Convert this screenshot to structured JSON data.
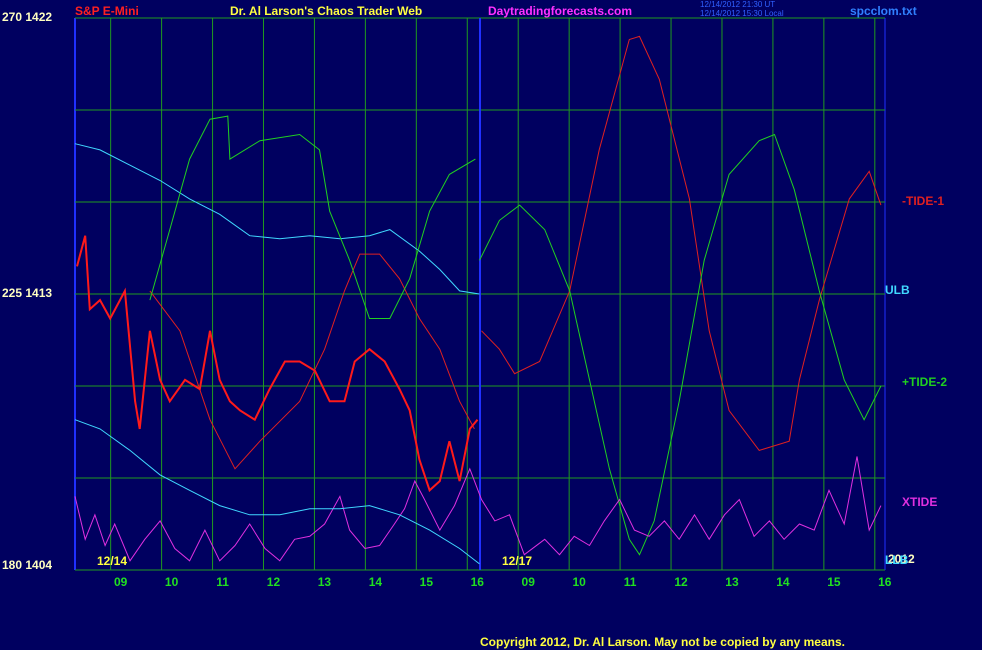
{
  "chart_data": {
    "type": "line",
    "title": "Dr. Al Larson's Chaos Trader Web",
    "instrument": "S&P E-Mini",
    "website": "Daytradingforecasts.com",
    "timestamps": [
      "12/14/2012 21:30 UT",
      "12/14/2012 15:30 Local"
    ],
    "file": "spcclom.txt",
    "year": "2012",
    "copyright": "Copyright 2012, Dr. Al Larson. May not be copied by any means.",
    "day_labels": [
      "12/14",
      "12/17"
    ],
    "xlim": [
      0,
      15.9
    ],
    "ylim": [
      1404,
      1422
    ],
    "yticks": [
      {
        "value": 1404,
        "label": "180  1404"
      },
      {
        "value": 1413,
        "label": "225  1413"
      },
      {
        "value": 1422,
        "label": "270  1422"
      }
    ],
    "ygrid": [
      1404,
      1407,
      1410,
      1413,
      1416,
      1419,
      1422
    ],
    "xticks": [
      {
        "value": 0.7,
        "label": "09"
      },
      {
        "value": 1.7,
        "label": "10"
      },
      {
        "value": 2.7,
        "label": "11"
      },
      {
        "value": 3.7,
        "label": "12"
      },
      {
        "value": 4.7,
        "label": "13"
      },
      {
        "value": 5.7,
        "label": "14"
      },
      {
        "value": 6.7,
        "label": "15"
      },
      {
        "value": 7.7,
        "label": "16"
      },
      {
        "value": 8.7,
        "label": "09"
      },
      {
        "value": 9.7,
        "label": "10"
      },
      {
        "value": 10.7,
        "label": "11"
      },
      {
        "value": 11.7,
        "label": "12"
      },
      {
        "value": 12.7,
        "label": "13"
      },
      {
        "value": 13.7,
        "label": "14"
      },
      {
        "value": 14.7,
        "label": "15"
      },
      {
        "value": 15.7,
        "label": "16"
      }
    ],
    "session_break": 7.95,
    "grid": true,
    "grid_color": "#1f9a1f",
    "price": {
      "color": "#ff1a1a",
      "x": [
        0.04,
        0.2,
        0.29,
        0.49,
        0.69,
        0.98,
        1.18,
        1.27,
        1.47,
        1.67,
        1.86,
        2.16,
        2.45,
        2.65,
        2.84,
        3.04,
        3.24,
        3.53,
        3.82,
        4.12,
        4.41,
        4.71,
        5.0,
        5.29,
        5.49,
        5.78,
        6.08,
        6.37,
        6.57,
        6.76,
        6.96,
        7.16,
        7.35,
        7.55,
        7.75,
        7.9
      ],
      "values": [
        1413.9,
        1414.9,
        1412.5,
        1412.8,
        1412.2,
        1413.1,
        1409.5,
        1408.6,
        1411.8,
        1410.2,
        1409.5,
        1410.2,
        1409.9,
        1411.8,
        1410.2,
        1409.5,
        1409.2,
        1408.9,
        1409.9,
        1410.8,
        1410.8,
        1410.5,
        1409.5,
        1409.5,
        1410.8,
        1411.2,
        1410.8,
        1409.9,
        1409.2,
        1407.6,
        1406.6,
        1406.9,
        1408.2,
        1406.9,
        1408.6,
        1408.9
      ]
    },
    "series": [
      {
        "name": "-TIDE-1",
        "color": "#e02020",
        "x": [
          1.47,
          2.06,
          2.65,
          3.14,
          3.63,
          4.41,
          4.9,
          5.29,
          5.59,
          5.98,
          6.37,
          6.76,
          7.16,
          7.55,
          7.84,
          7.9,
          7.98,
          8.33,
          8.63,
          9.12,
          9.71,
          10.29,
          10.88,
          11.08,
          11.47,
          12.06,
          12.45,
          12.84,
          13.43,
          14.02,
          14.22,
          14.61,
          15.2,
          15.59,
          15.82
        ],
        "values": [
          1413.1,
          1411.8,
          1408.9,
          1407.3,
          1408.2,
          1409.5,
          1411.2,
          1413.1,
          1414.3,
          1414.3,
          1413.5,
          1412.2,
          1411.2,
          1409.5,
          1408.6,
          null,
          1411.8,
          1411.2,
          1410.4,
          1410.8,
          1413.1,
          1417.7,
          1421.3,
          1421.4,
          1420.0,
          1416.1,
          1411.8,
          1409.2,
          1407.9,
          1408.2,
          1410.2,
          1412.8,
          1416.1,
          1417.0,
          1415.9
        ]
      },
      {
        "name": "ULB",
        "color": "#40d8ff",
        "x": [
          0,
          0.49,
          1.08,
          1.67,
          2.25,
          2.84,
          3.43,
          4.02,
          4.61,
          5.2,
          5.78,
          6.18,
          6.76,
          7.16,
          7.55,
          7.94
        ],
        "values": [
          1417.9,
          1417.7,
          1417.2,
          1416.7,
          1416.1,
          1415.6,
          1414.9,
          1414.8,
          1414.9,
          1414.8,
          1414.9,
          1415.1,
          1414.4,
          1413.8,
          1413.1,
          1413.0
        ]
      },
      {
        "name": "+TIDE-2",
        "color": "#20d020",
        "x": [
          1.47,
          1.86,
          2.25,
          2.65,
          3.0,
          3.04,
          3.63,
          4.41,
          4.8,
          5.0,
          5.39,
          5.78,
          6.18,
          6.57,
          6.96,
          7.35,
          7.86,
          7.9,
          7.94,
          8.33,
          8.73,
          9.22,
          9.71,
          10.1,
          10.49,
          10.88,
          11.08,
          11.37,
          11.86,
          12.35,
          12.84,
          13.43,
          13.73,
          14.12,
          14.61,
          15.1,
          15.49,
          15.82
        ],
        "values": [
          1412.8,
          1415.1,
          1417.4,
          1418.7,
          1418.8,
          1417.4,
          1418.0,
          1418.2,
          1417.7,
          1415.7,
          1414.1,
          1412.2,
          1412.2,
          1413.5,
          1415.7,
          1416.9,
          1417.4,
          null,
          1414.1,
          1415.4,
          1415.9,
          1415.1,
          1413.1,
          1410.2,
          1407.3,
          1405.0,
          1404.5,
          1405.6,
          1409.5,
          1414.1,
          1416.9,
          1418.0,
          1418.2,
          1416.4,
          1413.1,
          1410.2,
          1408.9,
          1410.0
        ]
      },
      {
        "name": "XTIDE",
        "color": "#e030e0",
        "x": [
          0,
          0.2,
          0.39,
          0.59,
          0.78,
          1.08,
          1.37,
          1.67,
          1.96,
          2.25,
          2.55,
          2.84,
          3.14,
          3.43,
          3.73,
          4.02,
          4.31,
          4.61,
          4.9,
          5.2,
          5.39,
          5.69,
          5.98,
          6.27,
          6.47,
          6.67,
          6.86,
          7.16,
          7.45,
          7.75,
          7.98,
          8.24,
          8.53,
          8.82,
          9.22,
          9.51,
          9.8,
          10.1,
          10.39,
          10.69,
          10.98,
          11.27,
          11.57,
          11.86,
          12.16,
          12.45,
          12.75,
          13.04,
          13.33,
          13.63,
          13.92,
          14.22,
          14.51,
          14.8,
          15.1,
          15.35,
          15.59,
          15.82
        ],
        "values": [
          1406.4,
          1405.0,
          1405.8,
          1404.8,
          1405.5,
          1404.3,
          1405.0,
          1405.6,
          1404.7,
          1404.3,
          1405.3,
          1404.3,
          1404.8,
          1405.5,
          1404.7,
          1404.3,
          1405.0,
          1405.1,
          1405.5,
          1406.4,
          1405.3,
          1404.7,
          1404.8,
          1405.5,
          1406.0,
          1406.9,
          1406.3,
          1405.3,
          1406.1,
          1407.3,
          1406.3,
          1405.6,
          1405.8,
          1404.5,
          1405.0,
          1404.5,
          1405.1,
          1404.8,
          1405.6,
          1406.3,
          1405.3,
          1405.1,
          1405.6,
          1405.0,
          1405.8,
          1405.0,
          1405.8,
          1406.3,
          1405.1,
          1405.6,
          1405.0,
          1405.5,
          1405.3,
          1406.6,
          1405.5,
          1407.7,
          1405.3,
          1406.1
        ]
      },
      {
        "name": "LLB",
        "color": "#40d8ff",
        "x": [
          0,
          0.49,
          1.08,
          1.67,
          2.25,
          2.84,
          3.43,
          4.02,
          4.61,
          5.2,
          5.78,
          6.37,
          6.96,
          7.55,
          7.94
        ],
        "values": [
          1408.9,
          1408.6,
          1407.9,
          1407.1,
          1406.6,
          1406.1,
          1405.8,
          1405.8,
          1406.0,
          1406.0,
          1406.1,
          1405.8,
          1405.3,
          1404.7,
          1404.2
        ]
      }
    ]
  }
}
